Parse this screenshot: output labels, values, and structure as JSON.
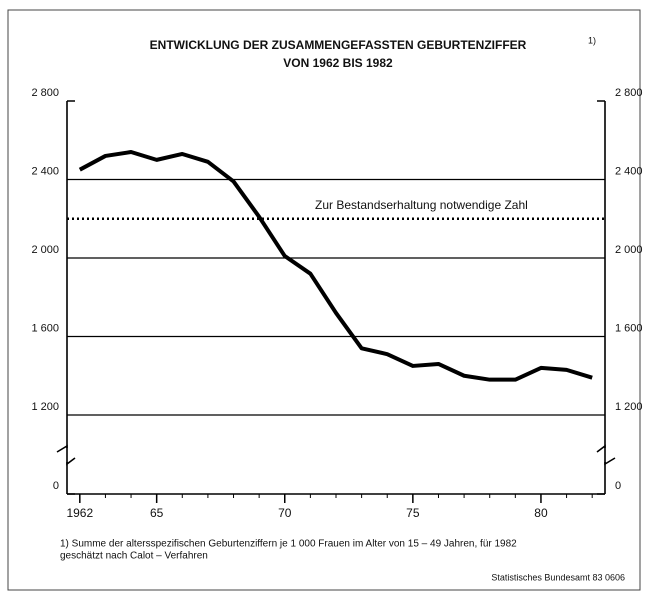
{
  "chart_data": {
    "type": "line",
    "title": "ENTWICKLUNG DER ZUSAMMENGEFASSTEN GEBURTENZIFFER",
    "title_note": "1)",
    "subtitle": "VON 1962 BIS 1982",
    "x": [
      1962,
      1963,
      1964,
      1965,
      1966,
      1967,
      1968,
      1969,
      1970,
      1971,
      1972,
      1973,
      1974,
      1975,
      1976,
      1977,
      1978,
      1979,
      1980,
      1981,
      1982
    ],
    "series": [
      {
        "color": "#000000",
        "values": [
          2450,
          2520,
          2540,
          2500,
          2530,
          2490,
          2390,
          2210,
          2010,
          1920,
          1720,
          1540,
          1510,
          1450,
          1460,
          1400,
          1380,
          1380,
          1440,
          1430,
          1390
        ]
      }
    ],
    "xlim": [
      1961.5,
      1982.5
    ],
    "xticks": [
      {
        "value": 1962,
        "label": "1962"
      },
      {
        "value": 1965,
        "label": "65"
      },
      {
        "value": 1970,
        "label": "70"
      },
      {
        "value": 1975,
        "label": "75"
      },
      {
        "value": 1980,
        "label": "80"
      }
    ],
    "ylim": [
      1200,
      2800
    ],
    "yticks": [
      0,
      {
        "value": 1200,
        "label": "1 200"
      },
      {
        "value": 1600,
        "label": "1 600"
      },
      {
        "value": 2000,
        "label": "2 000"
      },
      {
        "value": 2400,
        "label": "2 400"
      },
      {
        "value": 2800,
        "label": "2 800"
      }
    ],
    "axis_break": true,
    "grid": true,
    "reference": {
      "value": 2200,
      "label": "Zur Bestandserhaltung notwendige Zahl"
    },
    "footnote": [
      "1) Summe der altersspezifischen Geburtenziffern je 1 000 Frauen im Alter von 15 – 49 Jahren, für 1982",
      "geschätzt nach Calot – Verfahren"
    ],
    "source": "Statistisches Bundesamt 83 0606"
  }
}
